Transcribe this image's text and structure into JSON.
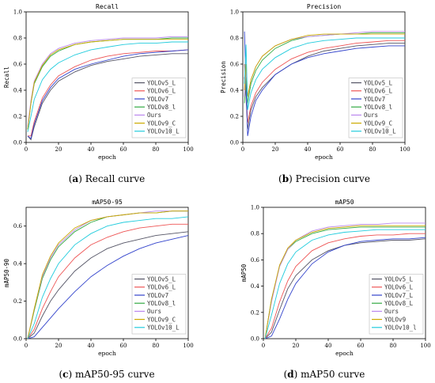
{
  "figure": {
    "captions": [
      {
        "letter": "a",
        "text": "Recall curve"
      },
      {
        "letter": "b",
        "text": "Precision curve"
      },
      {
        "letter": "c",
        "text": "mAP50-95 curve"
      },
      {
        "letter": "d",
        "text": "mAP50 curve"
      }
    ]
  },
  "chart_data": [
    {
      "type": "line",
      "title": "Recall",
      "xlabel": "epoch",
      "ylabel": "Recall",
      "xlim": [
        0,
        100
      ],
      "ylim": [
        0,
        1.0
      ],
      "xticks": [
        0,
        20,
        40,
        60,
        80,
        100
      ],
      "yticks": [
        0,
        0.2,
        0.4,
        0.6,
        0.8,
        1.0
      ],
      "ytick_labels": [
        "0.0",
        "0.2",
        "0.4",
        "0.6",
        "0.8",
        "1.0"
      ],
      "legend_position": "lower-right",
      "x": [
        1,
        3,
        5,
        10,
        15,
        20,
        30,
        40,
        50,
        60,
        70,
        80,
        90,
        100
      ],
      "series": [
        {
          "name": "YOLOv5_L",
          "color": "#555566",
          "values": [
            0.05,
            0.02,
            0.12,
            0.3,
            0.4,
            0.47,
            0.54,
            0.59,
            0.62,
            0.64,
            0.66,
            0.67,
            0.68,
            0.68
          ]
        },
        {
          "name": "YOLOv6_L",
          "color": "#ee5555",
          "values": [
            0.05,
            0.05,
            0.16,
            0.34,
            0.44,
            0.51,
            0.58,
            0.63,
            0.66,
            0.68,
            0.69,
            0.7,
            0.7,
            0.71
          ]
        },
        {
          "name": "YOLOv7",
          "color": "#3344cc",
          "values": [
            0.05,
            0.03,
            0.14,
            0.32,
            0.42,
            0.49,
            0.56,
            0.6,
            0.63,
            0.66,
            0.68,
            0.69,
            0.7,
            0.71
          ]
        },
        {
          "name": "YOLOv8_l",
          "color": "#33aa44",
          "values": [
            0.1,
            0.3,
            0.45,
            0.58,
            0.66,
            0.7,
            0.75,
            0.77,
            0.78,
            0.79,
            0.79,
            0.79,
            0.8,
            0.8
          ]
        },
        {
          "name": "Ours",
          "color": "#bb88ee",
          "values": [
            0.12,
            0.32,
            0.47,
            0.6,
            0.68,
            0.72,
            0.76,
            0.78,
            0.79,
            0.8,
            0.8,
            0.8,
            0.81,
            0.81
          ]
        },
        {
          "name": "YOLOv9_C",
          "color": "#ccaa00",
          "values": [
            0.1,
            0.3,
            0.46,
            0.59,
            0.67,
            0.71,
            0.75,
            0.77,
            0.78,
            0.79,
            0.79,
            0.79,
            0.79,
            0.79
          ]
        },
        {
          "name": "YOLOv10_L",
          "color": "#22ccdd",
          "values": [
            0.08,
            0.2,
            0.33,
            0.48,
            0.56,
            0.61,
            0.67,
            0.71,
            0.73,
            0.75,
            0.76,
            0.76,
            0.77,
            0.77
          ]
        }
      ]
    },
    {
      "type": "line",
      "title": "Precision",
      "xlabel": "epoch",
      "ylabel": "Precision",
      "xlim": [
        0,
        100
      ],
      "ylim": [
        0,
        1.0
      ],
      "xticks": [
        0,
        20,
        40,
        60,
        80,
        100
      ],
      "yticks": [
        0,
        0.2,
        0.4,
        0.6,
        0.8,
        1.0
      ],
      "ytick_labels": [
        "0.0",
        "0.2",
        "0.4",
        "0.6",
        "0.8",
        "1.0"
      ],
      "legend_position": "lower-right",
      "x": [
        1,
        2,
        3,
        5,
        8,
        12,
        20,
        30,
        40,
        50,
        60,
        70,
        80,
        90,
        100
      ],
      "series": [
        {
          "name": "YOLOv5_L",
          "color": "#555566",
          "values": [
            0.5,
            0.35,
            0.1,
            0.25,
            0.35,
            0.42,
            0.52,
            0.6,
            0.66,
            0.7,
            0.72,
            0.74,
            0.75,
            0.76,
            0.76
          ]
        },
        {
          "name": "YOLOv6_L",
          "color": "#ee5555",
          "values": [
            0.6,
            0.42,
            0.15,
            0.28,
            0.38,
            0.46,
            0.56,
            0.64,
            0.69,
            0.72,
            0.74,
            0.76,
            0.77,
            0.78,
            0.78
          ]
        },
        {
          "name": "YOLOv7",
          "color": "#3344cc",
          "values": [
            0.85,
            0.45,
            0.05,
            0.2,
            0.32,
            0.4,
            0.52,
            0.6,
            0.65,
            0.68,
            0.7,
            0.72,
            0.73,
            0.74,
            0.74
          ]
        },
        {
          "name": "YOLOv8_l",
          "color": "#33aa44",
          "values": [
            0.3,
            0.5,
            0.3,
            0.45,
            0.55,
            0.63,
            0.72,
            0.78,
            0.81,
            0.82,
            0.83,
            0.83,
            0.84,
            0.84,
            0.84
          ]
        },
        {
          "name": "Ours",
          "color": "#bb88ee",
          "values": [
            0.35,
            0.55,
            0.35,
            0.48,
            0.58,
            0.66,
            0.74,
            0.79,
            0.81,
            0.82,
            0.83,
            0.84,
            0.85,
            0.85,
            0.85
          ]
        },
        {
          "name": "YOLOv9_C",
          "color": "#ccaa00",
          "values": [
            0.4,
            0.6,
            0.35,
            0.48,
            0.58,
            0.66,
            0.74,
            0.79,
            0.82,
            0.83,
            0.83,
            0.83,
            0.83,
            0.83,
            0.83
          ]
        },
        {
          "name": "YOLOv10_L",
          "color": "#22ccdd",
          "values": [
            0.45,
            0.75,
            0.25,
            0.38,
            0.48,
            0.56,
            0.65,
            0.72,
            0.76,
            0.78,
            0.79,
            0.8,
            0.8,
            0.8,
            0.8
          ]
        }
      ]
    },
    {
      "type": "line",
      "title": "mAP50-95",
      "xlabel": "epoch",
      "ylabel": "mAP50-90",
      "xlim": [
        0,
        100
      ],
      "ylim": [
        0,
        0.7
      ],
      "xticks": [
        0,
        20,
        40,
        60,
        80,
        100
      ],
      "yticks": [
        0,
        0.2,
        0.4,
        0.6
      ],
      "ytick_labels": [
        "0.0",
        "0.2",
        "0.4",
        "0.6"
      ],
      "legend_position": "lower-right",
      "x": [
        1,
        5,
        10,
        15,
        20,
        30,
        40,
        50,
        60,
        70,
        80,
        90,
        100
      ],
      "series": [
        {
          "name": "YOLOv5_L",
          "color": "#555566",
          "values": [
            0.0,
            0.03,
            0.12,
            0.2,
            0.26,
            0.36,
            0.43,
            0.48,
            0.51,
            0.53,
            0.55,
            0.56,
            0.57
          ]
        },
        {
          "name": "YOLOv6_L",
          "color": "#ee5555",
          "values": [
            0.0,
            0.05,
            0.16,
            0.25,
            0.33,
            0.43,
            0.5,
            0.54,
            0.57,
            0.59,
            0.6,
            0.61,
            0.61
          ]
        },
        {
          "name": "YOLOv7",
          "color": "#3344cc",
          "values": [
            0.0,
            0.01,
            0.06,
            0.11,
            0.16,
            0.25,
            0.33,
            0.39,
            0.44,
            0.48,
            0.51,
            0.53,
            0.55
          ]
        },
        {
          "name": "YOLOv8_l",
          "color": "#33aa44",
          "values": [
            0.0,
            0.15,
            0.32,
            0.42,
            0.49,
            0.57,
            0.62,
            0.65,
            0.66,
            0.67,
            0.67,
            0.68,
            0.68
          ]
        },
        {
          "name": "Ours",
          "color": "#bb88ee",
          "values": [
            0.0,
            0.16,
            0.33,
            0.43,
            0.5,
            0.58,
            0.63,
            0.65,
            0.66,
            0.67,
            0.68,
            0.68,
            0.68
          ]
        },
        {
          "name": "YOLOv9_C",
          "color": "#ccaa00",
          "values": [
            0.0,
            0.16,
            0.34,
            0.44,
            0.51,
            0.59,
            0.63,
            0.65,
            0.66,
            0.67,
            0.67,
            0.68,
            0.68
          ]
        },
        {
          "name": "YOLOv10_L",
          "color": "#22ccdd",
          "values": [
            0.0,
            0.08,
            0.22,
            0.32,
            0.4,
            0.5,
            0.56,
            0.6,
            0.62,
            0.63,
            0.64,
            0.64,
            0.65
          ]
        }
      ]
    },
    {
      "type": "line",
      "title": "mAP50",
      "xlabel": "epoch",
      "ylabel": "mAP50",
      "xlim": [
        0,
        100
      ],
      "ylim": [
        0,
        1.0
      ],
      "xticks": [
        0,
        20,
        40,
        60,
        80,
        100
      ],
      "yticks": [
        0,
        0.2,
        0.4,
        0.6,
        0.8,
        1.0
      ],
      "ytick_labels": [
        "0.0",
        "0.2",
        "0.4",
        "0.6",
        "0.8",
        "1.0"
      ],
      "legend_position": "lower-right",
      "x": [
        1,
        5,
        10,
        15,
        20,
        30,
        40,
        50,
        60,
        70,
        80,
        90,
        100
      ],
      "series": [
        {
          "name": "YOLOv5_L",
          "color": "#555566",
          "values": [
            0.0,
            0.05,
            0.22,
            0.38,
            0.48,
            0.6,
            0.67,
            0.71,
            0.73,
            0.74,
            0.75,
            0.75,
            0.76
          ]
        },
        {
          "name": "YOLOv6_L",
          "color": "#ee5555",
          "values": [
            0.0,
            0.08,
            0.28,
            0.44,
            0.55,
            0.67,
            0.73,
            0.76,
            0.78,
            0.79,
            0.79,
            0.8,
            0.8
          ]
        },
        {
          "name": "YOLOv7_L",
          "color": "#3344cc",
          "values": [
            0.0,
            0.02,
            0.15,
            0.3,
            0.42,
            0.57,
            0.66,
            0.71,
            0.74,
            0.75,
            0.76,
            0.76,
            0.77
          ]
        },
        {
          "name": "YOLOv8_L",
          "color": "#33aa44",
          "values": [
            0.0,
            0.3,
            0.55,
            0.68,
            0.74,
            0.8,
            0.83,
            0.84,
            0.85,
            0.85,
            0.85,
            0.85,
            0.85
          ]
        },
        {
          "name": "Ours",
          "color": "#bb88ee",
          "values": [
            0.0,
            0.28,
            0.55,
            0.68,
            0.75,
            0.82,
            0.85,
            0.86,
            0.87,
            0.87,
            0.88,
            0.88,
            0.88
          ]
        },
        {
          "name": "YOLOv9",
          "color": "#ccaa00",
          "values": [
            0.0,
            0.3,
            0.56,
            0.69,
            0.75,
            0.81,
            0.84,
            0.85,
            0.86,
            0.86,
            0.86,
            0.86,
            0.86
          ]
        },
        {
          "name": "YOLOv10_l",
          "color": "#22ccdd",
          "values": [
            0.0,
            0.18,
            0.42,
            0.57,
            0.66,
            0.75,
            0.79,
            0.81,
            0.82,
            0.83,
            0.83,
            0.83,
            0.83
          ]
        }
      ]
    }
  ]
}
